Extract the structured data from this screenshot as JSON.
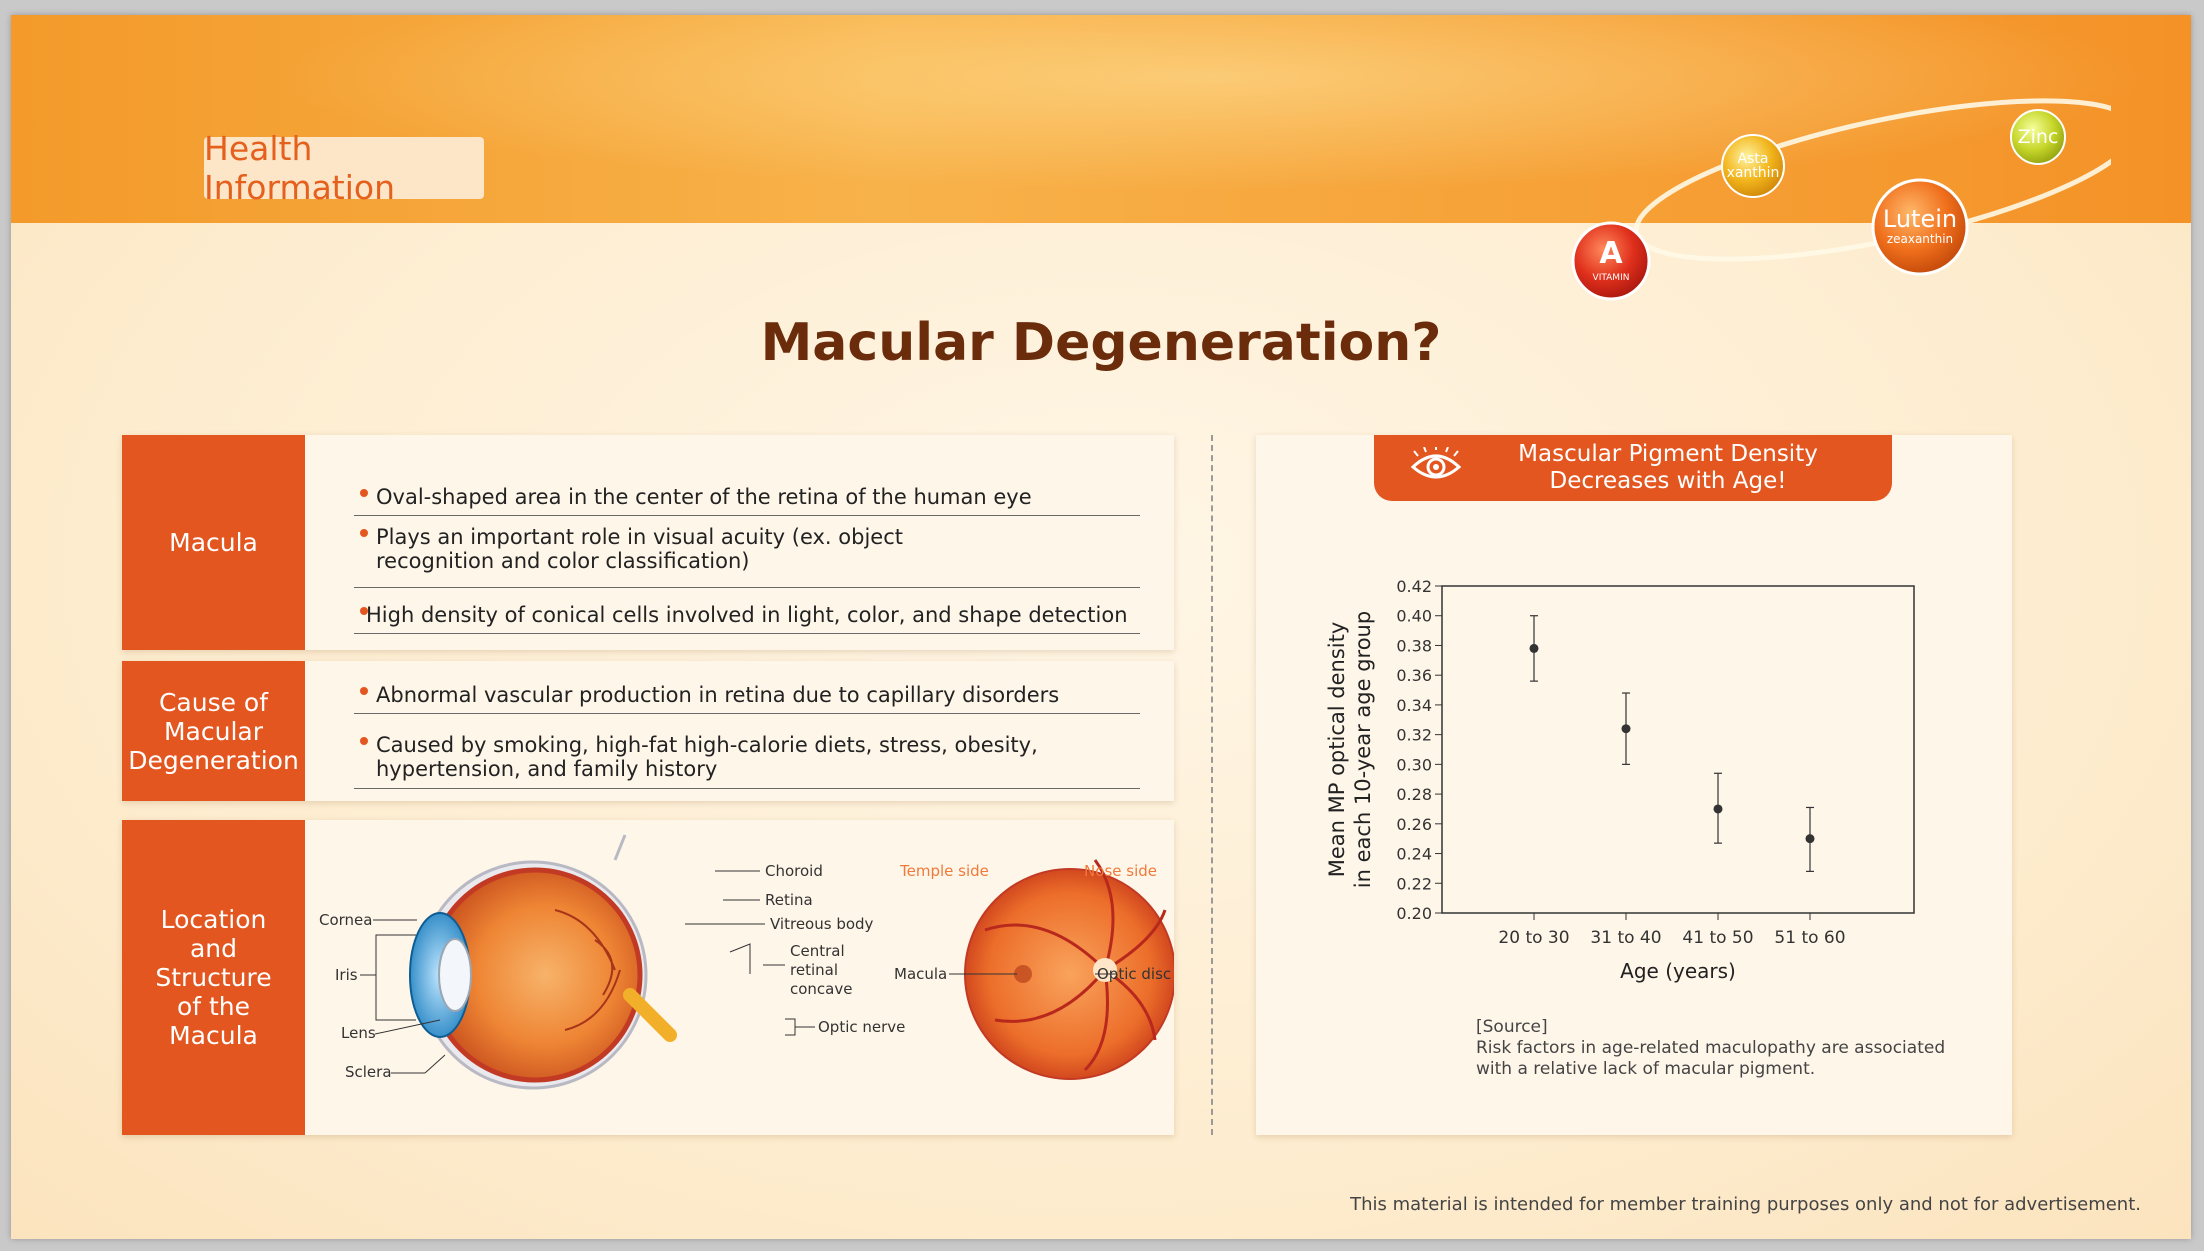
{
  "header": {
    "tag": "Health Information",
    "badges": {
      "vitamin_a": "A",
      "vitamin_a_sub": "VITAMIN",
      "astaxanthin": [
        "Asta",
        "xanthin"
      ],
      "lutein": "Lutein",
      "lutein_sub": "zeaxanthin",
      "zinc": "Zinc"
    }
  },
  "title": "Macular Degeneration?",
  "cards": [
    {
      "label_lines": [
        "Macula"
      ],
      "bullets": [
        "Oval-shaped area in the center of the retina of the human eye",
        "Plays an important role in visual acuity (ex. object recognition and color classification)",
        "High density of conical cells involved in light, color, and shape detection"
      ]
    },
    {
      "label_lines": [
        "Cause of",
        "Macular",
        "Degeneration"
      ],
      "bullets": [
        "Abnormal vascular production in retina due to capillary disorders",
        "Caused by smoking, high-fat high-calorie diets, stress, obesity, hypertension, and family history"
      ]
    },
    {
      "label_lines": [
        "Location",
        "and",
        "Structure",
        "of the",
        "Macula"
      ],
      "eye_labels": {
        "cornea": "Cornea",
        "iris": "Iris",
        "lens": "Lens",
        "sclera": "Sclera",
        "choroid": "Choroid",
        "retina": "Retina",
        "vitreous": "Vitreous body",
        "central_concave": [
          "Central",
          "retinal",
          "concave"
        ],
        "optic_nerve": "Optic nerve"
      },
      "fundus_labels": {
        "temple_side": "Temple side",
        "nose_side": "Nose side",
        "macula": "Macula",
        "optic_disc": "Optic disc"
      }
    }
  ],
  "chart_header": [
    "Mascular Pigment Density",
    "Decreases with Age!"
  ],
  "chart_data": {
    "type": "scatter",
    "categories": [
      "20 to 30",
      "31 to 40",
      "41 to 50",
      "51 to 60"
    ],
    "values": [
      0.378,
      0.324,
      0.27,
      0.25
    ],
    "error_low": [
      0.356,
      0.3,
      0.247,
      0.228
    ],
    "error_high": [
      0.4,
      0.348,
      0.294,
      0.271
    ],
    "xlabel": "Age (years)",
    "ylabel": [
      "Mean MP optical density",
      "in each 10-year age group"
    ],
    "ylim": [
      0.2,
      0.42
    ],
    "yticks": [
      "0.42",
      "0.40",
      "0.38",
      "0.36",
      "0.34",
      "0.32",
      "0.30",
      "0.28",
      "0.26",
      "0.24",
      "0.22",
      "0.20"
    ],
    "grid": false
  },
  "source": {
    "label": "[Source]",
    "lines": [
      "Risk factors in age-related maculopathy are associated",
      "with a relative lack of macular pigment."
    ]
  },
  "footer": "This material is intended for member training purposes only and not for advertisement.",
  "colors": {
    "accent": "#e4561f",
    "title": "#6b2c0c",
    "banner": "#f5a333"
  }
}
